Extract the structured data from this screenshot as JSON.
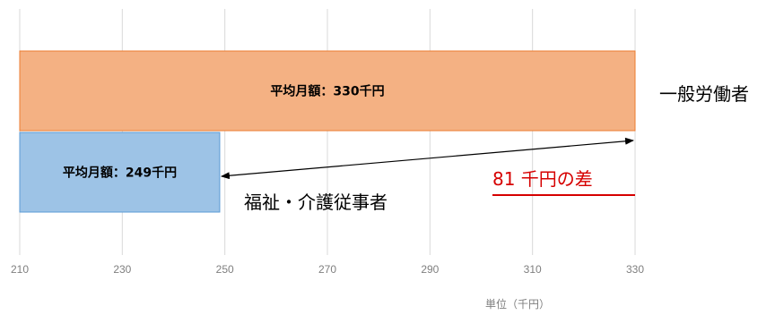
{
  "chart_data": {
    "type": "bar",
    "orientation": "horizontal",
    "x_ticks": [
      210,
      230,
      250,
      270,
      290,
      310,
      330
    ],
    "xlim": [
      210,
      330
    ],
    "xlabel": "単位（千円）",
    "grid": "vertical",
    "bars": [
      {
        "category": "一般労働者",
        "value": 330,
        "label": "平均月額：330千円",
        "fill": "#f4b183",
        "stroke": "#ed7d31"
      },
      {
        "category": "福祉・介護従事者",
        "value": 249,
        "label": "平均月額：249千円",
        "fill": "#9dc3e6",
        "stroke": "#5b9bd5"
      }
    ],
    "annotation": {
      "text": "81 千円の差",
      "color": "#d60000",
      "from": 249,
      "to": 330
    }
  },
  "labels": {
    "general": "一般労働者",
    "welfare": "福祉・介護従事者",
    "difference": "81 千円の差",
    "unit": "単位（千円）"
  }
}
